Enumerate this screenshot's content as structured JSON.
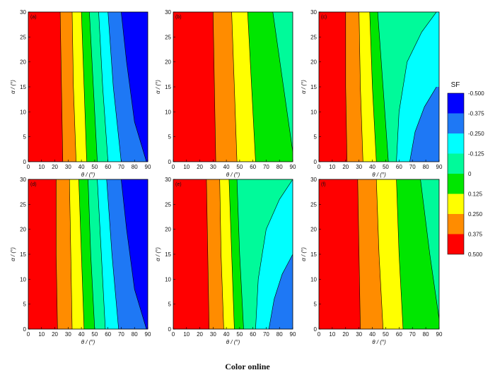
{
  "caption": "Color online",
  "colorbar": {
    "title": "SF",
    "labels": [
      "-0.500",
      "-0.375",
      "-0.250",
      "-0.125",
      "0",
      "0.125",
      "0.250",
      "0.375",
      "0.500"
    ],
    "colors": [
      "#0000ff",
      "#1e78f5",
      "#00ffff",
      "#00fa9a",
      "#00e600",
      "#ffff00",
      "#ff8c00",
      "#ff0000"
    ]
  },
  "chart_data": [
    {
      "type": "heatmap",
      "panel": "(a)",
      "xlabel": "θ / (°)",
      "ylabel": "α / (°)",
      "xlim": [
        0,
        90
      ],
      "ylim": [
        0,
        30
      ],
      "xticks": [
        "0",
        "10",
        "20",
        "30",
        "40",
        "50",
        "60",
        "70",
        "80",
        "90"
      ],
      "yticks": [
        "0",
        "5",
        "10",
        "15",
        "20",
        "25",
        "30"
      ],
      "contours": [
        {
          "boundary_x_at_alpha0": 26,
          "boundary_x_at_alpha30": 24
        },
        {
          "boundary_x_at_alpha0": 36,
          "boundary_x_at_alpha30": 33
        },
        {
          "boundary_x_at_alpha0": 44,
          "boundary_x_at_alpha30": 40
        },
        {
          "boundary_x_at_alpha0": 52,
          "boundary_x_at_alpha30": 46
        },
        {
          "boundary_x_at_alpha0": 60,
          "boundary_x_at_alpha30": 53
        },
        {
          "boundary_x_at_alpha0": 70,
          "boundary_x_at_alpha30": 60
        },
        {
          "boundary_x_at_alpha0": 89,
          "boundary_x_at_alpha30": 70
        }
      ]
    },
    {
      "type": "heatmap",
      "panel": "(b)",
      "xlabel": "θ / (°)",
      "ylabel": "α / (°)",
      "xlim": [
        0,
        90
      ],
      "ylim": [
        0,
        30
      ],
      "xticks": [
        "0",
        "10",
        "20",
        "30",
        "40",
        "50",
        "60",
        "70",
        "80",
        "90"
      ],
      "yticks": [
        "0",
        "5",
        "10",
        "15",
        "20",
        "25",
        "30"
      ],
      "contours": [
        {
          "boundary_x_at_alpha0": 32,
          "boundary_x_at_alpha30": 30
        },
        {
          "boundary_x_at_alpha0": 48,
          "boundary_x_at_alpha30": 44
        },
        {
          "boundary_x_at_alpha0": 62,
          "boundary_x_at_alpha30": 56
        },
        {
          "boundary_x_at_alpha0": 90,
          "boundary_x_at_alpha30": 75
        }
      ]
    },
    {
      "type": "heatmap",
      "panel": "(c)",
      "xlabel": "θ / (°)",
      "ylabel": "α / (°)",
      "xlim": [
        0,
        90
      ],
      "ylim": [
        0,
        30
      ],
      "xticks": [
        "0",
        "10",
        "20",
        "30",
        "40",
        "50",
        "60",
        "70",
        "80",
        "90"
      ],
      "yticks": [
        "0",
        "5",
        "10",
        "15",
        "20",
        "25",
        "30"
      ],
      "contours": [
        {
          "boundary_x_at_alpha0": 21,
          "boundary_x_at_alpha30": 20
        },
        {
          "boundary_x_at_alpha0": 33,
          "boundary_x_at_alpha30": 30
        },
        {
          "boundary_x_at_alpha0": 43,
          "boundary_x_at_alpha30": 38
        },
        {
          "boundary_x_at_alpha0": 52,
          "boundary_x_at_alpha30": 44
        },
        {
          "boundary_x_at_alpha0": 58,
          "boundary_x_at_alpha30": 88
        },
        {
          "boundary_x_at_alpha0": 68,
          "boundary_x_at_alpha15": 88
        }
      ]
    },
    {
      "type": "heatmap",
      "panel": "(d)",
      "xlabel": "θ / (°)",
      "ylabel": "α / (°)",
      "xlim": [
        0,
        90
      ],
      "ylim": [
        0,
        30
      ],
      "xticks": [
        "0",
        "10",
        "20",
        "30",
        "40",
        "50",
        "60",
        "70",
        "80",
        "90"
      ],
      "yticks": [
        "0",
        "5",
        "10",
        "15",
        "20",
        "25",
        "30"
      ],
      "contours": [
        {
          "boundary_x_at_alpha0": 22,
          "boundary_x_at_alpha30": 21
        },
        {
          "boundary_x_at_alpha0": 33,
          "boundary_x_at_alpha30": 31
        },
        {
          "boundary_x_at_alpha0": 42,
          "boundary_x_at_alpha30": 38
        },
        {
          "boundary_x_at_alpha0": 50,
          "boundary_x_at_alpha30": 45
        },
        {
          "boundary_x_at_alpha0": 58,
          "boundary_x_at_alpha30": 52
        },
        {
          "boundary_x_at_alpha0": 68,
          "boundary_x_at_alpha30": 59
        },
        {
          "boundary_x_at_alpha0": 89,
          "boundary_x_at_alpha30": 70
        }
      ]
    },
    {
      "type": "heatmap",
      "panel": "(e)",
      "xlabel": "θ / (°)",
      "ylabel": "α / (°)",
      "xlim": [
        0,
        90
      ],
      "ylim": [
        0,
        30
      ],
      "xticks": [
        "0",
        "10",
        "20",
        "30",
        "40",
        "50",
        "60",
        "70",
        "80",
        "90"
      ],
      "yticks": [
        "0",
        "5",
        "10",
        "15",
        "20",
        "25",
        "30"
      ],
      "contours": [
        {
          "boundary_x_at_alpha0": 27,
          "boundary_x_at_alpha30": 25
        },
        {
          "boundary_x_at_alpha0": 38,
          "boundary_x_at_alpha30": 35
        },
        {
          "boundary_x_at_alpha0": 46,
          "boundary_x_at_alpha30": 42
        },
        {
          "boundary_x_at_alpha0": 53,
          "boundary_x_at_alpha30": 48
        },
        {
          "boundary_x_at_alpha0": 62,
          "boundary_x_at_alpha30": 90
        },
        {
          "boundary_x_at_alpha0": 72,
          "boundary_x_at_alpha15": 90
        }
      ]
    },
    {
      "type": "heatmap",
      "panel": "(f)",
      "xlabel": "θ / (°)",
      "ylabel": "α / (°)",
      "xlim": [
        0,
        90
      ],
      "ylim": [
        0,
        30
      ],
      "xticks": [
        "0",
        "10",
        "20",
        "30",
        "40",
        "50",
        "60",
        "70",
        "80",
        "90"
      ],
      "yticks": [
        "0",
        "5",
        "10",
        "15",
        "20",
        "25",
        "30"
      ],
      "contours": [
        {
          "boundary_x_at_alpha0": 31,
          "boundary_x_at_alpha30": 29
        },
        {
          "boundary_x_at_alpha0": 48,
          "boundary_x_at_alpha30": 43
        },
        {
          "boundary_x_at_alpha0": 63,
          "boundary_x_at_alpha30": 58
        },
        {
          "boundary_x_at_alpha0": 90,
          "boundary_x_at_alpha30": 76
        }
      ]
    }
  ]
}
